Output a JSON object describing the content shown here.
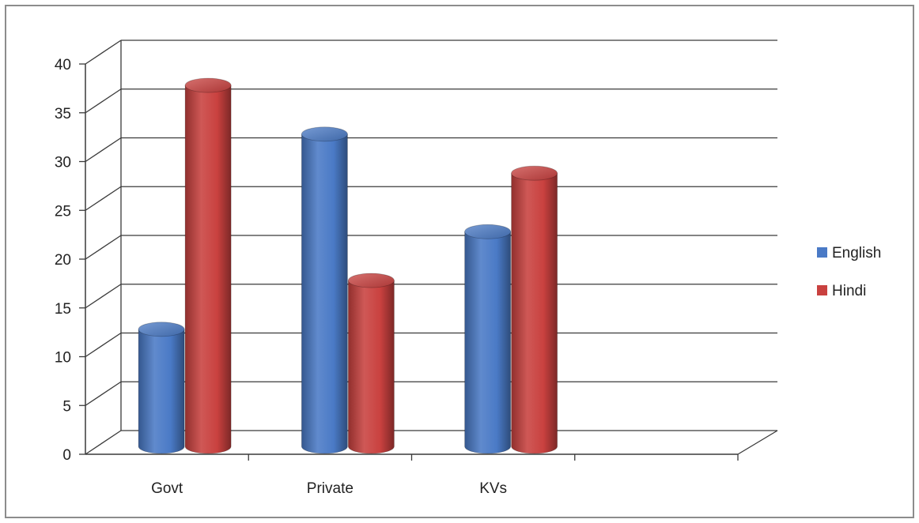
{
  "chart_data": {
    "type": "bar",
    "categories": [
      "Govt",
      "Private",
      "KVs"
    ],
    "series": [
      {
        "name": "English",
        "values": [
          12,
          32,
          22
        ],
        "color": "#4a7ac6"
      },
      {
        "name": "Hindi",
        "values": [
          37,
          17,
          28
        ],
        "color": "#c9413f"
      }
    ],
    "title": "",
    "xlabel": "",
    "ylabel": "",
    "ylim": [
      0,
      40
    ],
    "yticks": [
      0,
      5,
      10,
      15,
      20,
      25,
      30,
      35,
      40
    ],
    "grid": true,
    "legend": "right",
    "style": "3d-cylinder"
  }
}
